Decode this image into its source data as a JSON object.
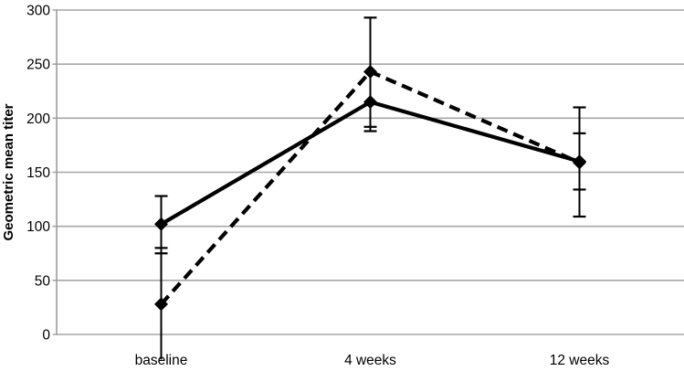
{
  "chart_data": {
    "type": "line",
    "title": "",
    "xlabel": "",
    "ylabel": "Geometric mean titer",
    "categories": [
      "baseline",
      "4 weeks",
      "12 weeks"
    ],
    "ylim": [
      0,
      300
    ],
    "yticks": [
      0,
      50,
      100,
      150,
      200,
      250,
      300
    ],
    "grid": "horizontal-only",
    "legend": "none",
    "series": [
      {
        "name": "solid-series",
        "line_style": "solid",
        "marker": "diamond",
        "color": "#000000",
        "values": [
          102,
          215,
          160
        ],
        "error_bars": [
          {
            "lo": 75,
            "hi": 128
          },
          {
            "lo": 188,
            "hi": 245,
            "hi_cap": false
          },
          {
            "lo": 134,
            "hi": 186
          }
        ]
      },
      {
        "name": "dashed-series",
        "line_style": "dashed",
        "marker": "diamond",
        "color": "#000000",
        "values": [
          28,
          243,
          159
        ],
        "error_bars": [
          {
            "lo": -23,
            "hi": 80,
            "lo_cap": false
          },
          {
            "lo": 192,
            "hi": 293
          },
          {
            "lo": 109,
            "hi": 210
          }
        ]
      }
    ],
    "colors": {
      "series": "#000000",
      "grid": "#a6a6a6",
      "axis": "#9d9d9d",
      "text": "#000000",
      "background": "#ffffff"
    }
  }
}
